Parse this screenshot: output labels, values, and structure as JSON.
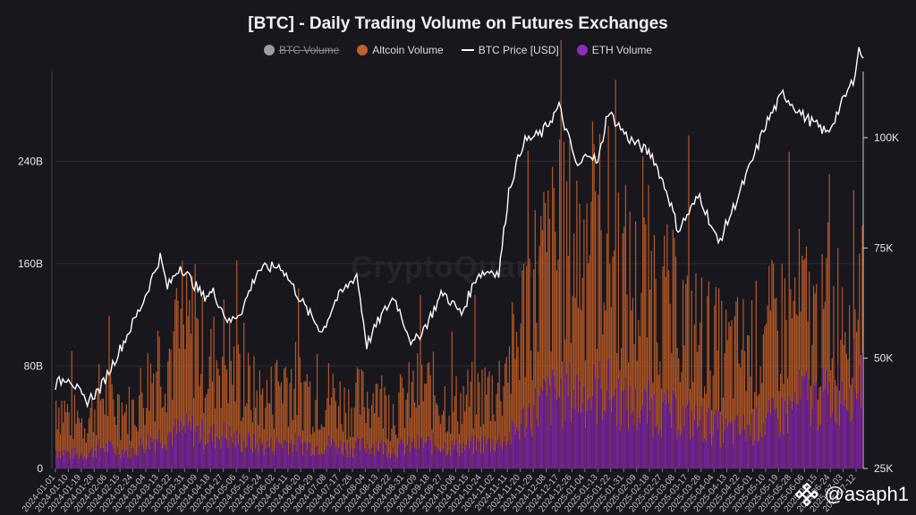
{
  "title": "[BTC] - Daily Trading Volume on Futures Exchanges",
  "legend": [
    {
      "label": "BTC Volume",
      "color": "#9e9e9e",
      "kind": "dot",
      "hidden": true
    },
    {
      "label": "Altcoin Volume",
      "color": "#c0602a",
      "kind": "dot",
      "hidden": false
    },
    {
      "label": "BTC Price [USD]",
      "color": "#ffffff",
      "kind": "line",
      "hidden": false
    },
    {
      "label": "ETH Volume",
      "color": "#8a2dbf",
      "kind": "dot",
      "hidden": false
    }
  ],
  "watermark": "CryptoQuant",
  "handle": "@asaph1",
  "chart_data": {
    "type": "bar",
    "y_left": {
      "ticks": [
        "0",
        "80B",
        "160B",
        "240B"
      ],
      "tick_values": [
        0,
        80,
        160,
        240
      ],
      "unit": "B",
      "range": [
        0,
        310
      ]
    },
    "y_right": {
      "ticks": [
        "25K",
        "50K",
        "75K",
        "100K"
      ],
      "tick_values": [
        25000,
        50000,
        75000,
        100000
      ],
      "range": [
        25000,
        115000
      ]
    },
    "x_ticks": [
      "2024-01-01",
      "2024-01-10",
      "2024-01-19",
      "2024-01-28",
      "2024-02-06",
      "2024-02-15",
      "2024-02-24",
      "2024-03-04",
      "2024-03-13",
      "2024-03-22",
      "2024-03-31",
      "2024-04-09",
      "2024-04-18",
      "2024-04-27",
      "2024-05-06",
      "2024-05-15",
      "2024-05-24",
      "2024-06-02",
      "2024-06-11",
      "2024-06-20",
      "2024-06-29",
      "2024-07-08",
      "2024-07-17",
      "2024-07-26",
      "2024-08-04",
      "2024-08-13",
      "2024-08-22",
      "2024-08-31",
      "2024-09-09",
      "2024-09-18",
      "2024-09-27",
      "2024-10-06",
      "2024-10-15",
      "2024-10-24",
      "2024-11-02",
      "2024-11-11",
      "2024-11-20",
      "2024-11-29",
      "2024-12-08",
      "2024-12-17",
      "2024-12-26",
      "2025-01-04",
      "2025-01-13",
      "2025-01-22",
      "2025-01-31",
      "2025-02-09",
      "2025-02-18",
      "2025-02-27",
      "2025-03-08",
      "2025-03-17",
      "2025-03-26",
      "2025-04-04",
      "2025-04-13",
      "2025-04-22",
      "2025-05-01",
      "2025-05-10",
      "2025-05-19",
      "2025-05-28",
      "2025-06-06",
      "2025-06-15",
      "2025-06-24",
      "2025-07-03",
      "2025-07-12"
    ],
    "btc_price_series": {
      "name": "BTC Price [USD]",
      "x": [
        "2024-01-01",
        "2024-01-10",
        "2024-01-22",
        "2024-02-01",
        "2024-02-15",
        "2024-03-01",
        "2024-03-14",
        "2024-03-19",
        "2024-03-28",
        "2024-04-13",
        "2024-04-20",
        "2024-05-01",
        "2024-05-10",
        "2024-05-21",
        "2024-06-06",
        "2024-06-24",
        "2024-07-05",
        "2024-07-14",
        "2024-07-29",
        "2024-08-05",
        "2024-08-14",
        "2024-08-24",
        "2024-09-06",
        "2024-09-16",
        "2024-09-27",
        "2024-10-10",
        "2024-10-21",
        "2024-11-01",
        "2024-11-05",
        "2024-11-12",
        "2024-11-22",
        "2024-12-05",
        "2024-12-17",
        "2024-12-30",
        "2025-01-07",
        "2025-01-13",
        "2025-01-20",
        "2025-02-03",
        "2025-02-20",
        "2025-03-03",
        "2025-03-10",
        "2025-03-25",
        "2025-04-07",
        "2025-04-20",
        "2025-05-01",
        "2025-05-10",
        "2025-05-22",
        "2025-06-05",
        "2025-06-22",
        "2025-07-01",
        "2025-07-10",
        "2025-07-14",
        "2025-07-17"
      ],
      "values": [
        44000,
        46000,
        40000,
        43000,
        52000,
        62000,
        73000,
        66000,
        71000,
        64000,
        65000,
        58000,
        61000,
        70000,
        71000,
        61000,
        56000,
        63000,
        69000,
        53000,
        59000,
        64000,
        53000,
        58000,
        65000,
        60000,
        69000,
        70000,
        69000,
        88000,
        99000,
        101000,
        107000,
        93000,
        97000,
        94000,
        106000,
        100000,
        96000,
        87000,
        79000,
        87000,
        76000,
        86000,
        95000,
        103000,
        110000,
        105000,
        101000,
        107000,
        113000,
        120000,
        118000
      ]
    },
    "altcoin_volume_series": {
      "name": "Altcoin Volume",
      "x_range": [
        "2024-01-01",
        "2025-07-17"
      ],
      "approx_values": [
        55,
        40,
        38,
        60,
        50,
        45,
        70,
        90,
        95,
        110,
        80,
        95,
        70,
        60,
        55,
        75,
        65,
        55,
        60,
        50,
        55,
        60,
        45,
        55,
        65,
        60,
        50,
        55,
        60,
        65,
        90,
        140,
        160,
        170,
        180,
        175,
        190,
        160,
        140,
        150,
        130,
        120,
        110,
        100,
        90,
        95,
        100,
        110,
        120,
        130,
        110,
        120,
        140,
        160
      ]
    },
    "eth_volume_series": {
      "name": "ETH Volume",
      "x_range": [
        "2024-01-01",
        "2025-07-17"
      ],
      "approx_values": [
        15,
        12,
        12,
        18,
        15,
        14,
        22,
        28,
        30,
        32,
        26,
        28,
        22,
        20,
        18,
        22,
        20,
        18,
        20,
        17,
        18,
        20,
        15,
        18,
        20,
        20,
        17,
        18,
        20,
        22,
        28,
        45,
        55,
        60,
        62,
        60,
        65,
        55,
        48,
        50,
        45,
        42,
        38,
        35,
        30,
        32,
        35,
        40,
        45,
        60,
        55,
        60,
        70,
        80
      ]
    },
    "grid": true,
    "legend_position": "top-center"
  }
}
